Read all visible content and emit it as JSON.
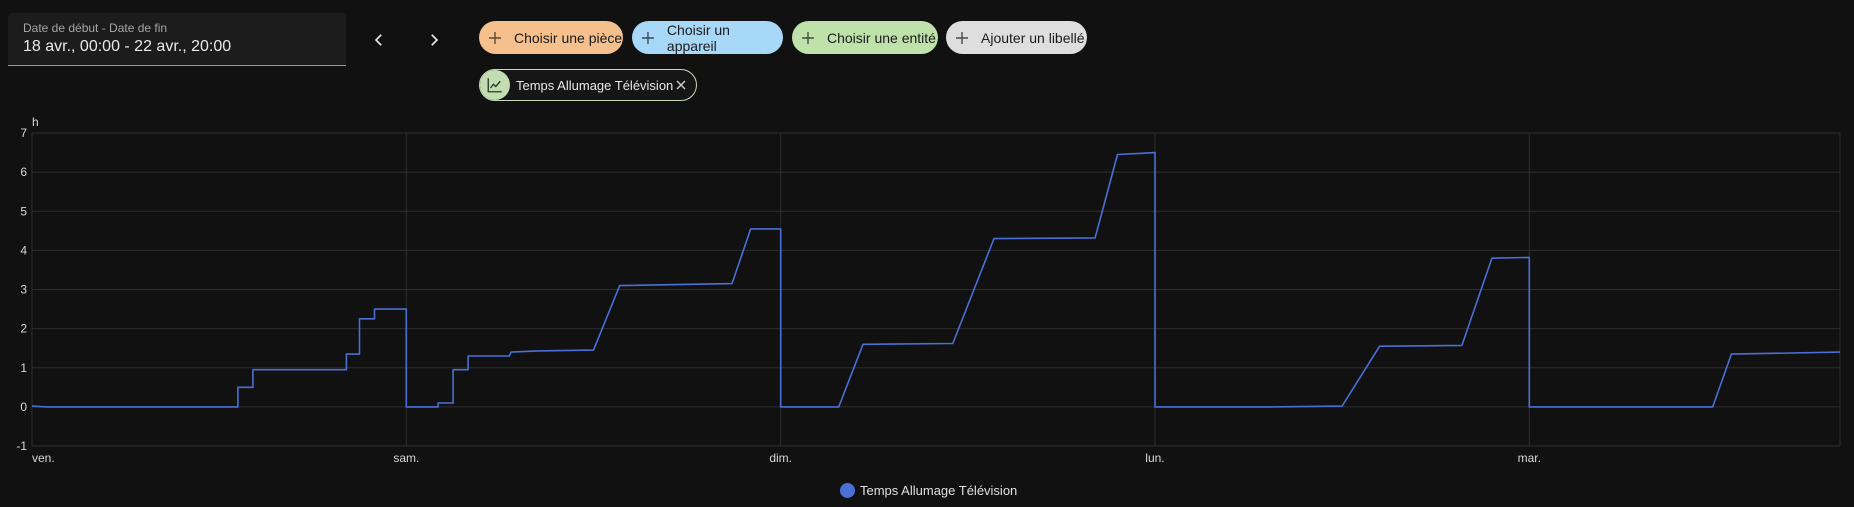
{
  "date_range": {
    "label": "Date de début - Date de fin",
    "value": "18 avr., 00:00 - 22 avr., 20:00"
  },
  "nav": {
    "prev_icon": "chevron-left-icon",
    "next_icon": "chevron-right-icon"
  },
  "target_chips": [
    {
      "id": "room",
      "label": "Choisir une pièce",
      "color": "#f5c08d"
    },
    {
      "id": "device",
      "label": "Choisir un appareil",
      "color": "#a7d8f7"
    },
    {
      "id": "entity",
      "label": "Choisir une entité",
      "color": "#bfe2ab"
    },
    {
      "id": "label",
      "label": "Ajouter un libellé",
      "color": "#dedede"
    }
  ],
  "selected_entity": {
    "label": "Temps Allumage Télévision",
    "icon": "chart-line-icon",
    "color": "#c2ddb1"
  },
  "chart_data": {
    "type": "line",
    "unit": "h",
    "ylim": [
      -1,
      7
    ],
    "y_ticks": [
      "-1",
      "0",
      "1",
      "2",
      "3",
      "4",
      "5",
      "6",
      "7"
    ],
    "x_ticks": [
      "ven.",
      "sam.",
      "dim.",
      "lun.",
      "mar."
    ],
    "xlim_days": [
      0,
      4.83
    ],
    "grid": true,
    "line_color": "#4a6fd6",
    "series": [
      {
        "name": "Temps Allumage Télévision",
        "segments": [
          [
            [
              0.0,
              0.02
            ],
            [
              0.04,
              0.0
            ],
            [
              0.55,
              0.0
            ],
            [
              0.55,
              0.5
            ],
            [
              0.59,
              0.5
            ],
            [
              0.59,
              0.95
            ],
            [
              0.84,
              0.95
            ],
            [
              0.84,
              1.35
            ],
            [
              0.875,
              1.35
            ],
            [
              0.875,
              2.25
            ],
            [
              0.915,
              2.25
            ],
            [
              0.915,
              2.5
            ],
            [
              1.0,
              2.5
            ],
            [
              1.0,
              0.0
            ],
            [
              1.085,
              0.0
            ],
            [
              1.085,
              0.1
            ],
            [
              1.125,
              0.1
            ],
            [
              1.125,
              0.95
            ],
            [
              1.165,
              0.95
            ],
            [
              1.165,
              1.3
            ],
            [
              1.275,
              1.3
            ],
            [
              1.28,
              1.4
            ],
            [
              1.35,
              1.43
            ],
            [
              1.5,
              1.45
            ],
            [
              1.57,
              3.1
            ],
            [
              1.87,
              3.15
            ],
            [
              1.92,
              4.55
            ],
            [
              2.0,
              4.55
            ],
            [
              2.0,
              0.0
            ],
            [
              2.155,
              0.0
            ],
            [
              2.22,
              1.6
            ],
            [
              2.46,
              1.62
            ],
            [
              2.57,
              4.3
            ],
            [
              2.84,
              4.32
            ],
            [
              2.9,
              6.45
            ],
            [
              3.0,
              6.5
            ],
            [
              3.0,
              0.0
            ],
            [
              3.31,
              0.0
            ],
            [
              3.5,
              0.02
            ],
            [
              3.6,
              1.55
            ],
            [
              3.82,
              1.57
            ],
            [
              3.9,
              3.8
            ],
            [
              4.0,
              3.82
            ],
            [
              4.0,
              0.0
            ],
            [
              4.49,
              0.0
            ],
            [
              4.54,
              1.35
            ],
            [
              4.83,
              1.4
            ]
          ]
        ]
      }
    ]
  }
}
